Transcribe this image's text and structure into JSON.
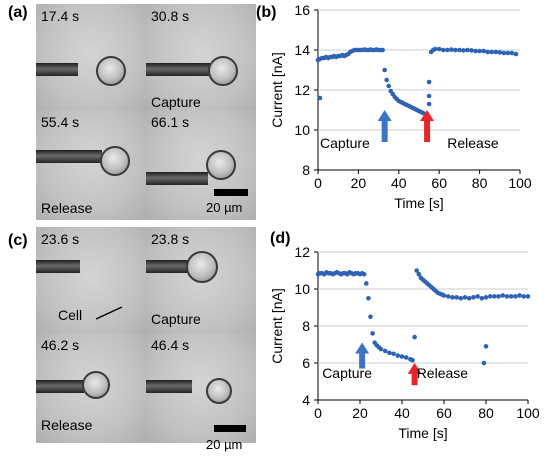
{
  "panels": {
    "a": {
      "label": "(a)",
      "frames": [
        {
          "time": "17.4 s",
          "caption": ""
        },
        {
          "time": "30.8 s",
          "caption": "Capture"
        },
        {
          "time": "55.4 s",
          "caption": "Release"
        },
        {
          "time": "66.1 s",
          "caption": ""
        }
      ],
      "scale_label": "20 µm"
    },
    "b": {
      "label": "(b)"
    },
    "c": {
      "label": "(c)",
      "frames": [
        {
          "time": "23.6 s",
          "caption": "Cell"
        },
        {
          "time": "23.8 s",
          "caption": "Capture"
        },
        {
          "time": "46.2 s",
          "caption": "Release"
        },
        {
          "time": "46.4 s",
          "caption": ""
        }
      ],
      "scale_label": "20 µm"
    },
    "d": {
      "label": "(d)"
    }
  },
  "colors": {
    "points": "#2e63b4",
    "capture_arrow": "#3b74c7",
    "release_arrow": "#e8262a"
  },
  "chart_data": [
    {
      "type": "scatter",
      "panel": "b",
      "title": "",
      "xlabel": "Time [s]",
      "ylabel": "Current [nA]",
      "xlim": [
        0,
        100
      ],
      "ylim": [
        8,
        16
      ],
      "xticks": [
        0,
        20,
        40,
        60,
        80,
        100
      ],
      "yticks": [
        8,
        10,
        12,
        14,
        16
      ],
      "annotations": [
        {
          "text": "Capture",
          "x": 1,
          "y": 9.1
        },
        {
          "text": "Release",
          "x": 64,
          "y": 9.1
        }
      ],
      "arrows": [
        {
          "name": "capture",
          "x": 33,
          "y_from": 9.4,
          "y_to": 10.9
        },
        {
          "name": "release",
          "x": 54,
          "y_from": 9.4,
          "y_to": 10.9
        }
      ],
      "series": [
        {
          "name": "",
          "segments": [
            {
              "x": [
                0,
                1,
                2,
                3,
                4,
                5,
                6,
                7,
                8,
                9,
                10,
                11,
                12,
                13,
                14,
                15,
                16,
                17,
                18,
                19,
                20,
                21,
                22,
                23,
                24,
                25,
                26,
                27,
                28,
                29,
                30,
                31,
                32
              ],
              "y": [
                13.5,
                13.55,
                13.6,
                13.6,
                13.65,
                13.6,
                13.65,
                13.65,
                13.7,
                13.65,
                13.7,
                13.7,
                13.75,
                13.7,
                13.75,
                13.8,
                13.9,
                13.95,
                14.0,
                14.0,
                14.0,
                14.0,
                14.0,
                14.02,
                14.0,
                14.0,
                14.02,
                14.0,
                14.0,
                14.02,
                14.0,
                14.0,
                14.0
              ]
            },
            {
              "x": [
                33,
                34,
                35,
                36,
                37,
                38,
                39,
                40,
                41,
                42,
                43,
                44,
                45,
                46,
                47,
                48,
                49,
                50,
                51,
                52,
                53
              ],
              "y": [
                13.0,
                12.5,
                12.2,
                11.95,
                11.8,
                11.65,
                11.55,
                11.45,
                11.4,
                11.35,
                11.3,
                11.25,
                11.2,
                11.15,
                11.1,
                11.05,
                11.0,
                10.95,
                10.9,
                10.85,
                10.8
              ]
            },
            {
              "x": [
                56,
                57,
                58,
                60,
                62,
                64,
                66,
                68,
                70,
                72,
                74,
                76,
                78,
                80,
                82,
                84,
                86,
                88,
                90,
                92,
                94,
                96,
                98
              ],
              "y": [
                13.9,
                14.0,
                14.05,
                14.05,
                14.0,
                14.0,
                14.02,
                14.0,
                14.0,
                13.98,
                14.0,
                13.98,
                13.95,
                13.95,
                13.95,
                13.9,
                13.9,
                13.9,
                13.88,
                13.85,
                13.85,
                13.85,
                13.8
              ]
            },
            {
              "x": [
                1,
                54,
                54,
                55,
                55,
                55
              ],
              "y": [
                11.6,
                10.5,
                10.8,
                11.3,
                11.7,
                12.4
              ]
            }
          ]
        }
      ]
    },
    {
      "type": "scatter",
      "panel": "d",
      "title": "",
      "xlabel": "Time [s]",
      "ylabel": "Current [nA]",
      "xlim": [
        0,
        100
      ],
      "ylim": [
        4,
        12
      ],
      "xticks": [
        0,
        20,
        40,
        60,
        80,
        100
      ],
      "yticks": [
        4,
        6,
        8,
        10,
        12
      ],
      "annotations": [
        {
          "text": "Capture",
          "x": 2,
          "y": 5.2
        },
        {
          "text": "Release",
          "x": 47,
          "y": 5.2
        }
      ],
      "arrows": [
        {
          "name": "capture",
          "x": 21,
          "y_from": 5.7,
          "y_to": 7.0
        },
        {
          "name": "release",
          "x": 46,
          "y_from": 4.8,
          "y_to": 5.9
        }
      ],
      "series": [
        {
          "name": "",
          "segments": [
            {
              "x": [
                0,
                1,
                2,
                3,
                4,
                5,
                6,
                7,
                8,
                9,
                10,
                11,
                12,
                13,
                14,
                15,
                16,
                17,
                18,
                19,
                20,
                21,
                22
              ],
              "y": [
                10.8,
                10.85,
                10.85,
                10.8,
                10.9,
                10.85,
                10.85,
                10.8,
                10.85,
                10.9,
                10.85,
                10.8,
                10.85,
                10.85,
                10.8,
                10.9,
                10.85,
                10.8,
                10.85,
                10.85,
                10.8,
                10.85,
                10.8
              ]
            },
            {
              "x": [
                23,
                24,
                25,
                26,
                27,
                28,
                29,
                30,
                32,
                34,
                36,
                38,
                40,
                42,
                44,
                45
              ],
              "y": [
                10.3,
                9.5,
                8.5,
                7.6,
                7.1,
                6.95,
                6.85,
                6.75,
                6.65,
                6.55,
                6.5,
                6.4,
                6.35,
                6.3,
                6.2,
                6.15
              ]
            },
            {
              "x": [
                47,
                48,
                49,
                50,
                51,
                52,
                53,
                54,
                55,
                56,
                57,
                58,
                59,
                60,
                62,
                64,
                66,
                68,
                70,
                72,
                74,
                76,
                78,
                80,
                82,
                84,
                86,
                88,
                90,
                92,
                94,
                96,
                98,
                100
              ],
              "y": [
                11.0,
                10.8,
                10.6,
                10.5,
                10.4,
                10.3,
                10.2,
                10.1,
                10.0,
                9.9,
                9.8,
                9.75,
                9.7,
                9.65,
                9.6,
                9.55,
                9.55,
                9.5,
                9.55,
                9.5,
                9.55,
                9.6,
                9.5,
                9.55,
                9.6,
                9.6,
                9.6,
                9.65,
                9.6,
                9.6,
                9.6,
                9.65,
                9.6,
                9.6
              ]
            },
            {
              "x": [
                46,
                79,
                80
              ],
              "y": [
                7.4,
                6.0,
                6.9
              ]
            }
          ]
        }
      ]
    }
  ]
}
